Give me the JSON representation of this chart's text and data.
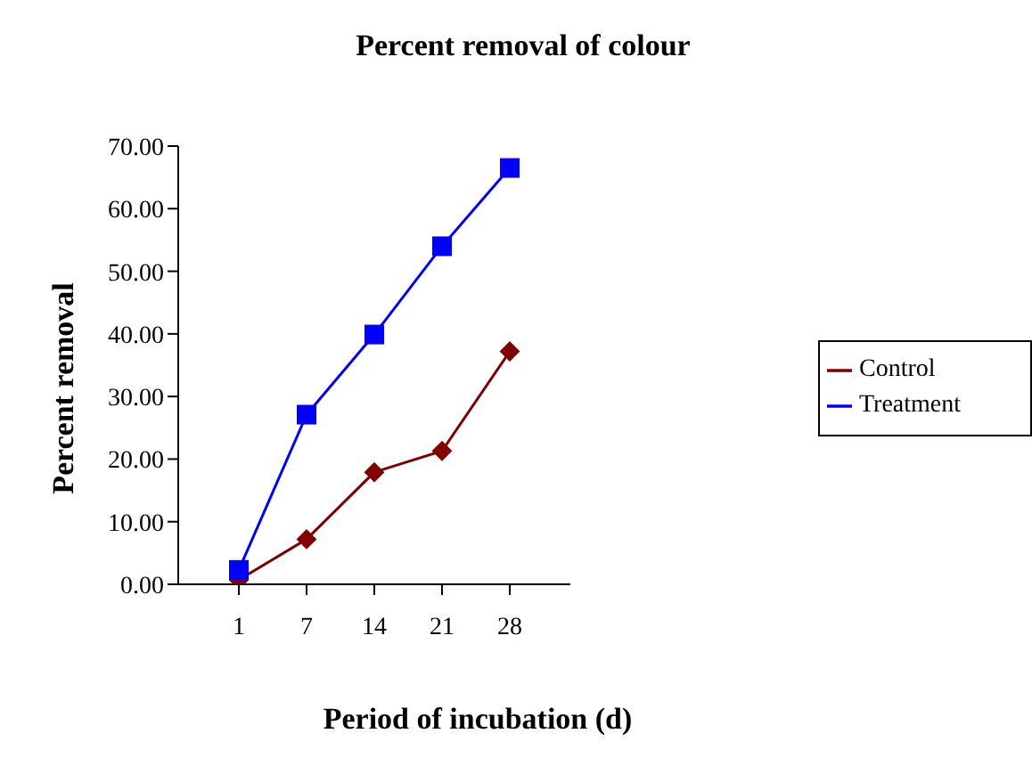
{
  "chart_data": {
    "type": "line",
    "title": "Percent removal of colour",
    "xlabel": "Period of incubation (d)",
    "ylabel": "Percent removal",
    "categories": [
      "1",
      "7",
      "14",
      "21",
      "28"
    ],
    "series": [
      {
        "name": "Control",
        "color": "#800000",
        "marker": "diamond",
        "values": [
          0.7,
          7.2,
          17.9,
          21.3,
          37.2
        ]
      },
      {
        "name": "Treatment",
        "color": "#0000ff",
        "marker": "square",
        "values": [
          2.3,
          27.1,
          39.9,
          54.0,
          66.5
        ]
      }
    ],
    "ylim": [
      0,
      70
    ],
    "yticks": [
      {
        "value": 0,
        "label": "0.00"
      },
      {
        "value": 10,
        "label": "10.00"
      },
      {
        "value": 20,
        "label": "20.00"
      },
      {
        "value": 30,
        "label": "30.00"
      },
      {
        "value": 40,
        "label": "40.00"
      },
      {
        "value": 50,
        "label": "50.00"
      },
      {
        "value": 60,
        "label": "60.00"
      },
      {
        "value": 70,
        "label": "70.00"
      }
    ],
    "grid": false,
    "legend": "right",
    "line_style": "solid"
  }
}
